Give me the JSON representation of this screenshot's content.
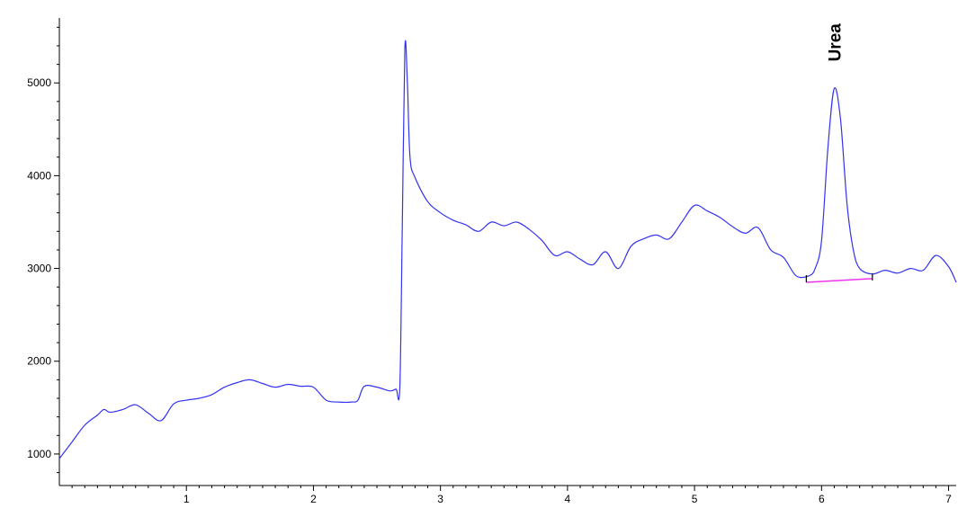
{
  "chart_data": {
    "type": "line",
    "title": "",
    "xlabel": "",
    "ylabel": "",
    "xlim": [
      0.0,
      7.06
    ],
    "ylim": [
      660,
      5700
    ],
    "grid": false,
    "x_ticks": [
      1,
      2,
      3,
      4,
      5,
      6,
      7
    ],
    "y_ticks": [
      1000,
      2000,
      3000,
      4000,
      5000
    ],
    "colors": {
      "trace": "#3333ee",
      "baseline": "#ee33ee",
      "axis": "#000000"
    },
    "series": [
      {
        "name": "",
        "points": [
          [
            0.0,
            950
          ],
          [
            0.1,
            1130
          ],
          [
            0.2,
            1310
          ],
          [
            0.3,
            1420
          ],
          [
            0.35,
            1480
          ],
          [
            0.4,
            1450
          ],
          [
            0.5,
            1480
          ],
          [
            0.6,
            1530
          ],
          [
            0.7,
            1440
          ],
          [
            0.8,
            1360
          ],
          [
            0.9,
            1540
          ],
          [
            1.0,
            1580
          ],
          [
            1.1,
            1600
          ],
          [
            1.2,
            1640
          ],
          [
            1.3,
            1720
          ],
          [
            1.4,
            1770
          ],
          [
            1.5,
            1800
          ],
          [
            1.6,
            1760
          ],
          [
            1.7,
            1720
          ],
          [
            1.8,
            1750
          ],
          [
            1.9,
            1730
          ],
          [
            2.0,
            1720
          ],
          [
            2.1,
            1580
          ],
          [
            2.2,
            1560
          ],
          [
            2.3,
            1560
          ],
          [
            2.35,
            1580
          ],
          [
            2.4,
            1730
          ],
          [
            2.5,
            1720
          ],
          [
            2.6,
            1680
          ],
          [
            2.65,
            1700
          ],
          [
            2.68,
            1720
          ],
          [
            2.7,
            3500
          ],
          [
            2.72,
            5380
          ],
          [
            2.74,
            5000
          ],
          [
            2.76,
            4200
          ],
          [
            2.8,
            3980
          ],
          [
            2.9,
            3720
          ],
          [
            3.0,
            3600
          ],
          [
            3.1,
            3520
          ],
          [
            3.2,
            3470
          ],
          [
            3.3,
            3400
          ],
          [
            3.4,
            3500
          ],
          [
            3.5,
            3460
          ],
          [
            3.6,
            3500
          ],
          [
            3.7,
            3420
          ],
          [
            3.8,
            3300
          ],
          [
            3.9,
            3140
          ],
          [
            4.0,
            3180
          ],
          [
            4.1,
            3100
          ],
          [
            4.2,
            3040
          ],
          [
            4.3,
            3180
          ],
          [
            4.4,
            3000
          ],
          [
            4.5,
            3240
          ],
          [
            4.6,
            3320
          ],
          [
            4.7,
            3360
          ],
          [
            4.8,
            3320
          ],
          [
            4.9,
            3500
          ],
          [
            5.0,
            3680
          ],
          [
            5.1,
            3620
          ],
          [
            5.2,
            3550
          ],
          [
            5.3,
            3450
          ],
          [
            5.4,
            3380
          ],
          [
            5.5,
            3440
          ],
          [
            5.6,
            3200
          ],
          [
            5.7,
            3120
          ],
          [
            5.8,
            2920
          ],
          [
            5.9,
            2920
          ],
          [
            5.95,
            3000
          ],
          [
            6.0,
            3300
          ],
          [
            6.05,
            4300
          ],
          [
            6.1,
            4940
          ],
          [
            6.15,
            4600
          ],
          [
            6.2,
            3700
          ],
          [
            6.25,
            3200
          ],
          [
            6.3,
            3000
          ],
          [
            6.4,
            2940
          ],
          [
            6.5,
            2980
          ],
          [
            6.6,
            2950
          ],
          [
            6.7,
            3000
          ],
          [
            6.8,
            2980
          ],
          [
            6.9,
            3140
          ],
          [
            7.0,
            3020
          ],
          [
            7.06,
            2850
          ]
        ]
      }
    ],
    "annotations": [
      {
        "text": "Urea",
        "x": 6.1,
        "y": 4940
      }
    ],
    "baseline": {
      "x1": 5.88,
      "y1": 2850,
      "x2": 6.4,
      "y2": 2890
    }
  }
}
